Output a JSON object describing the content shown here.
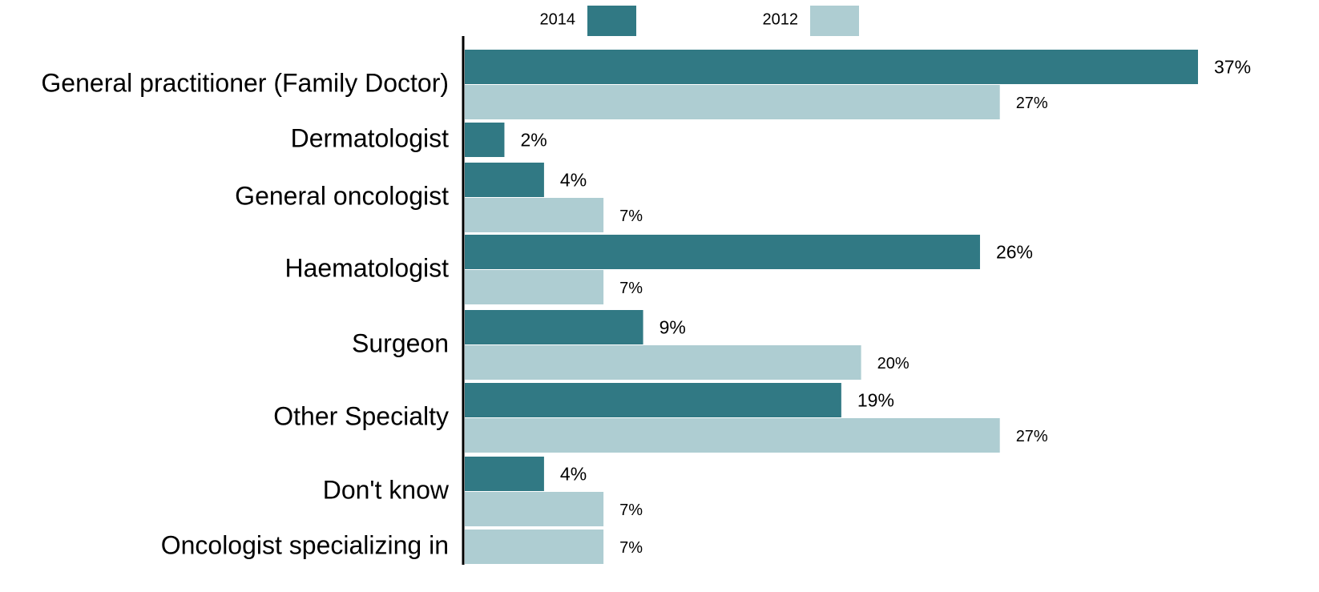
{
  "chart_data": {
    "type": "bar",
    "orientation": "horizontal",
    "categories": [
      "General practitioner (Family Doctor)",
      "Dermatologist",
      "General oncologist",
      "Haematologist",
      "Surgeon",
      "Other Specialty",
      "Don't know",
      "Oncologist specializing in"
    ],
    "series": [
      {
        "name": "2014",
        "color": "#317984",
        "values": [
          37,
          2,
          4,
          26,
          9,
          19,
          4,
          null
        ],
        "value_labels": [
          "37%",
          "2%",
          "4%",
          "26%",
          "9%",
          "19%",
          "4%",
          null
        ]
      },
      {
        "name": "2012",
        "color": "#aecdd2",
        "values": [
          27,
          null,
          7,
          7,
          20,
          27,
          7,
          7
        ],
        "value_labels": [
          "27%",
          null,
          "7%",
          "7%",
          "20%",
          "27%",
          "7%",
          "7%"
        ]
      }
    ],
    "legend": "top"
  }
}
